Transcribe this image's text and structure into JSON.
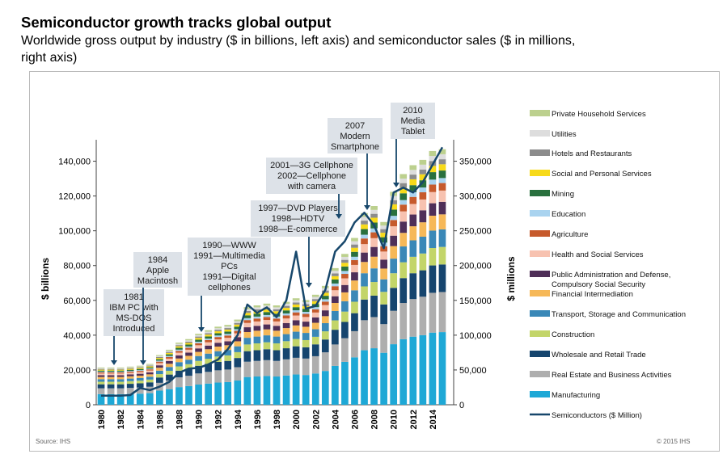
{
  "header": {
    "title": "Semiconductor growth tracks global output",
    "subtitle": "Worldwide gross output by industry ($ in billions, left axis) and semiconductor sales ($ in millions, right axis)"
  },
  "footer": {
    "source": "Source: IHS",
    "copyright": "© 2015 IHS"
  },
  "chart_data": {
    "type": "bar",
    "stacked": true,
    "title": "Semiconductor growth tracks global output",
    "ylabel": "$ billions",
    "y2label": "$ millions",
    "ylim": [
      0,
      150000
    ],
    "y2lim": [
      0,
      375000
    ],
    "yticks": [
      0,
      20000,
      40000,
      60000,
      80000,
      100000,
      120000,
      140000
    ],
    "ytick_labels": [
      "0",
      "20,000",
      "40,000",
      "60,000",
      "80,000",
      "100,000",
      "120,000",
      "140,000"
    ],
    "y2ticks": [
      0,
      50000,
      100000,
      150000,
      200000,
      250000,
      300000,
      350000
    ],
    "y2tick_labels": [
      "0",
      "50,000",
      "100,000",
      "150,000",
      "200,000",
      "250,000",
      "300,000",
      "350,000"
    ],
    "x": [
      1980,
      1981,
      1982,
      1983,
      1984,
      1985,
      1986,
      1987,
      1988,
      1989,
      1990,
      1991,
      1992,
      1993,
      1994,
      1995,
      1996,
      1997,
      1998,
      1999,
      2000,
      2001,
      2002,
      2003,
      2004,
      2005,
      2006,
      2007,
      2008,
      2009,
      2010,
      2011,
      2012,
      2013,
      2014,
      2015
    ],
    "xtick_labels": [
      "1980",
      "1982",
      "1984",
      "1986",
      "1988",
      "1990",
      "1992",
      "1994",
      "1996",
      "1998",
      "2000",
      "2002",
      "2004",
      "2006",
      "2008",
      "2010",
      "2012",
      "2014"
    ],
    "totals": [
      21000,
      21000,
      21000,
      21500,
      22000,
      23000,
      28000,
      31000,
      35000,
      37000,
      40000,
      42000,
      44000,
      45000,
      48000,
      55000,
      56000,
      57000,
      56000,
      58000,
      60000,
      59000,
      62000,
      67000,
      77000,
      85000,
      94000,
      108000,
      112000,
      103000,
      120000,
      130000,
      135000,
      138000,
      143000,
      144000
    ],
    "segment_colors": [
      "#1ea8d6",
      "#aeaeae",
      "#16456e",
      "#c3d569",
      "#3a88b7",
      "#f6b858",
      "#4f2f58",
      "#f7c2b0",
      "#c65a2c",
      "#a9d3ef",
      "#29703e",
      "#f7da1a",
      "#8c8c8c",
      "#dddddd",
      "#bcd08e"
    ],
    "semiconductors_series": {
      "name": "Semiconductors ($ Million)",
      "color": "#17476b",
      "values": [
        13000,
        13000,
        13000,
        14000,
        24000,
        21000,
        26000,
        33000,
        46000,
        52000,
        53000,
        58000,
        65000,
        80000,
        100000,
        144000,
        132000,
        140000,
        126000,
        150000,
        220000,
        138000,
        142000,
        165000,
        220000,
        235000,
        262000,
        276000,
        258000,
        225000,
        305000,
        312000,
        305000,
        320000,
        345000,
        370000
      ]
    },
    "legend": [
      {
        "name": "Private Household Services",
        "color": "#bcd08e"
      },
      {
        "name": "Utilities",
        "color": "#dddddd"
      },
      {
        "name": "Hotels and Restaurants",
        "color": "#8c8c8c"
      },
      {
        "name": "Social and Personal Services",
        "color": "#f7da1a"
      },
      {
        "name": "Mining",
        "color": "#29703e"
      },
      {
        "name": "Education",
        "color": "#a9d3ef"
      },
      {
        "name": "Agriculture",
        "color": "#c65a2c"
      },
      {
        "name": "Health and Social Services",
        "color": "#f7c2b0"
      },
      {
        "name": "Public Administration and Defense, Compulsory Social Security",
        "color": "#4f2f58"
      },
      {
        "name": "Financial Intermediation",
        "color": "#f6b858"
      },
      {
        "name": "Transport, Storage and Communication",
        "color": "#3a88b7"
      },
      {
        "name": "Construction",
        "color": "#c3d569"
      },
      {
        "name": "Wholesale and Retail Trade",
        "color": "#16456e"
      },
      {
        "name": "Real Estate and Business Activities",
        "color": "#aeaeae"
      },
      {
        "name": "Manufacturing",
        "color": "#1ea8d6"
      },
      {
        "name": "Semiconductors ($ Million)",
        "color": "#17476b",
        "line": true
      }
    ],
    "legend_position": "right",
    "grid": false,
    "annotations": [
      {
        "id": "ann-1981",
        "text": "1981\nIBM PC with\nMS-DOS\nIntroduced",
        "year": 1981
      },
      {
        "id": "ann-1984",
        "text": "1984\nApple\nMacintosh",
        "year": 1984
      },
      {
        "id": "ann-1990",
        "text": "1990—WWW\n1991—Multimedia\nPCs\n1991—Digital\ncellphones",
        "year": 1990
      },
      {
        "id": "ann-1997",
        "text": "1997—DVD Players\n1998—HDTV\n1998—E-commerce",
        "year": 1998
      },
      {
        "id": "ann-2001",
        "text": "2001—3G Cellphone\n2002—Cellphone\nwith camera",
        "year": 2002
      },
      {
        "id": "ann-2007",
        "text": "2007\nModern\nSmartphone",
        "year": 2007
      },
      {
        "id": "ann-2010",
        "text": "2010\nMedia\nTablet",
        "year": 2010
      }
    ]
  }
}
